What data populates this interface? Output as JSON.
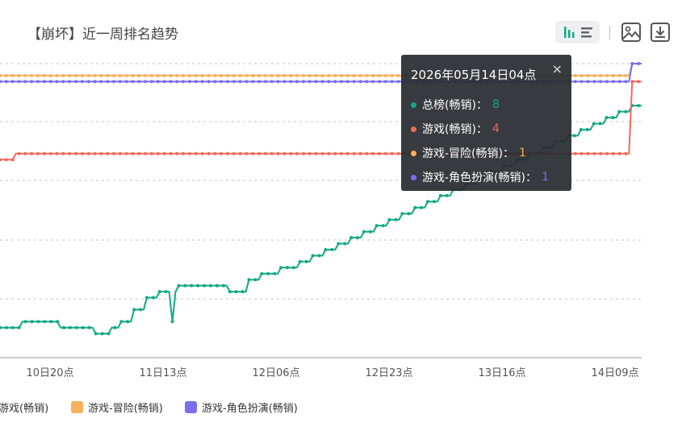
{
  "header": {
    "title": "【崩坏】近一周排名趋势"
  },
  "toolbar": {
    "toggle_icon": "bar-list-toggle-icon",
    "image_icon": "image-icon",
    "download_icon": "download-icon"
  },
  "chart_data": {
    "type": "line",
    "title": "【崩坏】近一周排名趋势",
    "y_inverted": true,
    "grid": true,
    "legend_placement": "bottom",
    "x_ticks": [
      "10日20点",
      "11日13点",
      "12日06点",
      "12日23点",
      "13日16点",
      "14日09点"
    ],
    "series": [
      {
        "name": "总榜(畅销)",
        "color": "#13a886",
        "values": [
          45,
          45,
          45,
          45,
          45,
          45,
          45,
          44,
          44,
          44,
          44,
          44,
          44,
          44,
          44,
          44,
          44,
          44,
          44,
          45,
          45,
          45,
          45,
          45,
          45,
          45,
          45,
          45,
          45,
          45,
          46,
          46,
          46,
          46,
          46,
          45,
          45,
          45,
          44,
          44,
          44,
          44,
          42,
          42,
          42,
          42,
          40,
          40,
          40,
          40,
          39,
          39,
          39,
          39,
          44,
          39,
          38,
          38,
          38,
          38,
          38,
          38,
          38,
          38,
          38,
          38,
          38,
          38,
          38,
          38,
          38,
          38,
          39,
          39,
          39,
          39,
          39,
          39,
          37,
          37,
          37,
          37,
          36,
          36,
          36,
          36,
          36,
          36,
          35,
          35,
          35,
          35,
          35,
          35,
          34,
          34,
          34,
          34,
          33,
          33,
          33,
          33,
          32,
          32,
          32,
          32,
          31,
          31,
          31,
          31,
          30,
          30,
          30,
          30,
          29,
          29,
          29,
          29,
          28,
          28,
          28,
          28,
          27,
          27,
          27,
          27,
          26,
          26,
          26,
          26,
          25,
          25,
          25,
          25,
          24,
          24,
          24,
          24,
          23,
          23,
          23,
          23,
          22,
          22,
          22,
          22,
          21,
          21,
          21,
          21,
          20,
          20,
          20,
          20,
          19,
          19,
          19,
          19,
          18,
          18,
          18,
          18,
          17,
          17,
          17,
          17,
          16,
          16,
          16,
          16,
          15,
          15,
          15,
          15,
          14,
          14,
          14,
          14,
          13,
          13,
          13,
          13,
          12,
          12,
          12,
          12,
          11,
          11,
          11,
          11,
          10,
          10,
          10,
          10,
          9,
          9,
          9,
          9,
          8,
          8,
          8,
          8
        ]
      },
      {
        "name": "游戏(畅销)",
        "color": "#f16a5c",
        "values": [
          17,
          17,
          17,
          17,
          17,
          16,
          16,
          16,
          16,
          16,
          16,
          16,
          16,
          16,
          16,
          16,
          16,
          16,
          16,
          16,
          16,
          16,
          16,
          16,
          16,
          16,
          16,
          16,
          16,
          16,
          16,
          16,
          16,
          16,
          16,
          16,
          16,
          16,
          16,
          16,
          16,
          16,
          16,
          16,
          16,
          16,
          16,
          16,
          16,
          16,
          16,
          16,
          16,
          16,
          16,
          16,
          16,
          16,
          16,
          16,
          16,
          16,
          16,
          16,
          16,
          16,
          16,
          16,
          16,
          16,
          16,
          16,
          16,
          16,
          16,
          16,
          16,
          16,
          16,
          16,
          16,
          16,
          16,
          16,
          16,
          16,
          16,
          16,
          16,
          16,
          16,
          16,
          16,
          16,
          16,
          16,
          16,
          16,
          16,
          16,
          16,
          16,
          16,
          16,
          16,
          16,
          16,
          16,
          16,
          16,
          16,
          16,
          16,
          16,
          16,
          16,
          16,
          16,
          16,
          16,
          16,
          16,
          16,
          16,
          16,
          16,
          16,
          16,
          16,
          16,
          16,
          16,
          16,
          16,
          16,
          16,
          16,
          16,
          16,
          16,
          16,
          16,
          16,
          16,
          16,
          16,
          16,
          16,
          16,
          16,
          16,
          16,
          16,
          16,
          16,
          16,
          16,
          16,
          16,
          16,
          16,
          16,
          16,
          16,
          16,
          16,
          16,
          16,
          16,
          16,
          16,
          16,
          16,
          16,
          16,
          16,
          16,
          16,
          16,
          16,
          16,
          16,
          16,
          16,
          16,
          16,
          16,
          16,
          16,
          16,
          16,
          16,
          16,
          16,
          16,
          16,
          16,
          16,
          16,
          16,
          4,
          4,
          4,
          4
        ]
      },
      {
        "name": "游戏-冒险(畅销)",
        "color": "#f5b15d",
        "values": [
          3,
          3,
          3,
          3,
          3,
          3,
          3,
          3,
          3,
          3,
          3,
          3,
          3,
          3,
          3,
          3,
          3,
          3,
          3,
          3,
          3,
          3,
          3,
          3,
          3,
          3,
          3,
          3,
          3,
          3,
          3,
          3,
          3,
          3,
          3,
          3,
          3,
          3,
          3,
          3,
          3,
          3,
          3,
          3,
          3,
          3,
          3,
          3,
          3,
          3,
          3,
          3,
          3,
          3,
          3,
          3,
          3,
          3,
          3,
          3,
          3,
          3,
          3,
          3,
          3,
          3,
          3,
          3,
          3,
          3,
          3,
          3,
          3,
          3,
          3,
          3,
          3,
          3,
          3,
          3,
          3,
          3,
          3,
          3,
          3,
          3,
          3,
          3,
          3,
          3,
          3,
          3,
          3,
          3,
          3,
          3,
          3,
          3,
          3,
          3,
          3,
          3,
          3,
          3,
          3,
          3,
          3,
          3,
          3,
          3,
          3,
          3,
          3,
          3,
          3,
          3,
          3,
          3,
          3,
          3,
          3,
          3,
          3,
          3,
          3,
          3,
          3,
          3,
          3,
          3,
          3,
          3,
          3,
          3,
          3,
          3,
          3,
          3,
          3,
          3,
          3,
          3,
          3,
          3,
          3,
          3,
          3,
          3,
          3,
          3,
          3,
          3,
          3,
          3,
          3,
          3,
          3,
          3,
          3,
          3,
          3,
          3,
          3,
          3,
          3,
          3,
          3,
          3,
          3,
          3,
          3,
          3,
          3,
          3,
          3,
          3,
          3,
          3,
          3,
          3,
          3,
          3,
          3,
          3,
          3,
          3,
          3,
          3,
          3,
          3,
          3,
          3,
          3,
          3,
          3,
          3,
          3,
          3,
          3,
          3,
          1,
          1,
          1,
          1
        ]
      },
      {
        "name": "游戏-角色扮演(畅销)",
        "color": "#7b6ef1",
        "values": [
          4,
          4,
          4,
          4,
          4,
          4,
          4,
          4,
          4,
          4,
          4,
          4,
          4,
          4,
          4,
          4,
          4,
          4,
          4,
          4,
          4,
          4,
          4,
          4,
          4,
          4,
          4,
          4,
          4,
          4,
          4,
          4,
          4,
          4,
          4,
          4,
          4,
          4,
          4,
          4,
          4,
          4,
          4,
          4,
          4,
          4,
          4,
          4,
          4,
          4,
          4,
          4,
          4,
          4,
          4,
          4,
          4,
          4,
          4,
          4,
          4,
          4,
          4,
          4,
          4,
          4,
          4,
          4,
          4,
          4,
          4,
          4,
          4,
          4,
          4,
          4,
          4,
          4,
          4,
          4,
          4,
          4,
          4,
          4,
          4,
          4,
          4,
          4,
          4,
          4,
          4,
          4,
          4,
          4,
          4,
          4,
          4,
          4,
          4,
          4,
          4,
          4,
          4,
          4,
          4,
          4,
          4,
          4,
          4,
          4,
          4,
          4,
          4,
          4,
          4,
          4,
          4,
          4,
          4,
          4,
          4,
          4,
          4,
          4,
          4,
          4,
          4,
          4,
          4,
          4,
          4,
          4,
          4,
          4,
          4,
          4,
          4,
          4,
          4,
          4,
          4,
          4,
          4,
          4,
          4,
          4,
          4,
          4,
          4,
          4,
          4,
          4,
          4,
          4,
          4,
          4,
          4,
          4,
          4,
          4,
          4,
          4,
          4,
          4,
          4,
          4,
          4,
          4,
          4,
          4,
          4,
          4,
          4,
          4,
          4,
          4,
          4,
          4,
          4,
          4,
          4,
          4,
          4,
          4,
          4,
          4,
          4,
          4,
          4,
          4,
          4,
          4,
          4,
          4,
          4,
          4,
          4,
          4,
          4,
          4,
          1,
          1,
          1,
          1
        ]
      }
    ],
    "tooltip": {
      "time": "2026年05月14日04点",
      "rows": [
        {
          "name": "总榜(畅销)",
          "value": "8",
          "color": "#13a886"
        },
        {
          "name": "游戏(畅销)",
          "value": "4",
          "color": "#f16a5c"
        },
        {
          "name": "游戏-冒险(畅销)",
          "value": "1",
          "color": "#f5b15d"
        },
        {
          "name": "游戏-角色扮演(畅销)",
          "value": "1",
          "color": "#7b6ef1"
        }
      ]
    }
  },
  "legend": [
    {
      "label": "游戏(畅销)",
      "color": "#f16a5c"
    },
    {
      "label": "游戏-冒险(畅销)",
      "color": "#f5b15d"
    },
    {
      "label": "游戏-角色扮演(畅销)",
      "color": "#7b6ef1"
    }
  ],
  "tooltip_close": "×"
}
